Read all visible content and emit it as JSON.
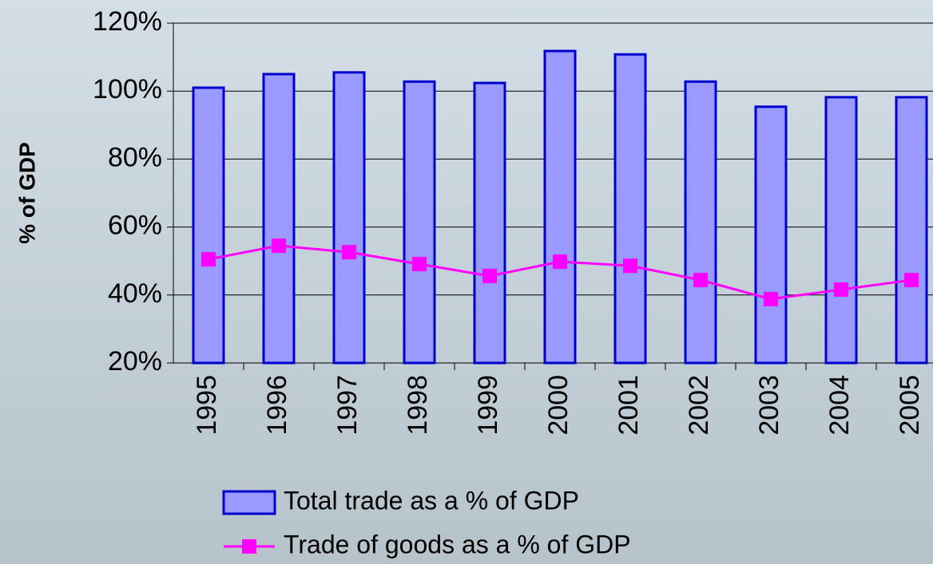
{
  "chart_data": {
    "type": "bar",
    "y_label": "% of GDP",
    "categories": [
      "1995",
      "1996",
      "1997",
      "1998",
      "1999",
      "2000",
      "2001",
      "2002",
      "2003",
      "2004",
      "2005"
    ],
    "series": [
      {
        "name": "Total trade as a % of GDP",
        "type": "bar",
        "color": "#9999ff",
        "edge_color": "#0000cc",
        "values": [
          101,
          105,
          105.5,
          102.8,
          102.4,
          111.8,
          110.8,
          102.8,
          95.4,
          98.2,
          98.2
        ]
      },
      {
        "name": "Trade of goods as a % of GDP",
        "type": "line",
        "color": "#ff00ff",
        "values": [
          50.5,
          54.5,
          52.6,
          49.1,
          45.6,
          49.8,
          48.6,
          44.4,
          38.8,
          41.6,
          44.4
        ]
      }
    ],
    "ylim": [
      20,
      120
    ],
    "yticks": [
      {
        "value": 20,
        "label": "20%"
      },
      {
        "value": 40,
        "label": "40%"
      },
      {
        "value": 60,
        "label": "60%"
      },
      {
        "value": 80,
        "label": "80%"
      },
      {
        "value": 100,
        "label": "100%"
      },
      {
        "value": 120,
        "label": "120%"
      }
    ],
    "grid": true,
    "legend": "bottom"
  }
}
